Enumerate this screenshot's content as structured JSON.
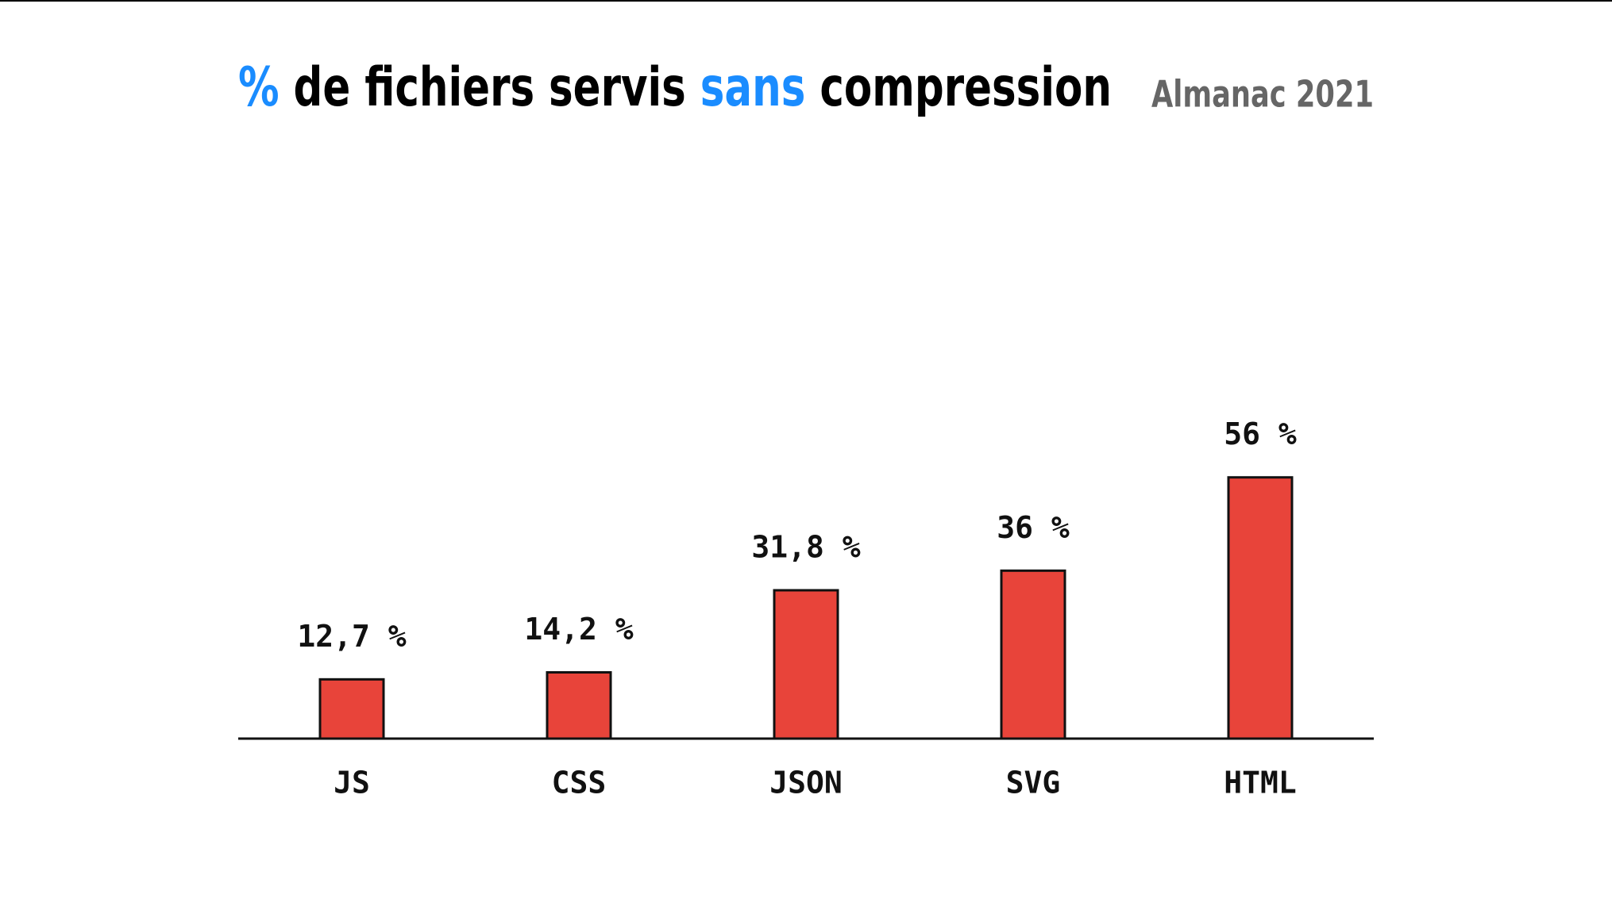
{
  "chart_data": {
    "type": "bar",
    "title": [
      {
        "text": "%",
        "color": "#1a8cff"
      },
      {
        "text": "de fichiers servis",
        "color": "#000000"
      },
      {
        "text": "sans",
        "color": "#1a8cff"
      },
      {
        "text": "compression",
        "color": "#000000"
      }
    ],
    "subtitle": "Almanac 2021",
    "categories": [
      "JS",
      "CSS",
      "JSON",
      "SVG",
      "HTML"
    ],
    "values": [
      12.7,
      14.2,
      31.8,
      36,
      56
    ],
    "value_labels": [
      "12,7 %",
      "14,2 %",
      "31,8 %",
      "36 %",
      "56 %"
    ],
    "color": "#e8443a",
    "ylim": [
      0,
      100
    ]
  }
}
